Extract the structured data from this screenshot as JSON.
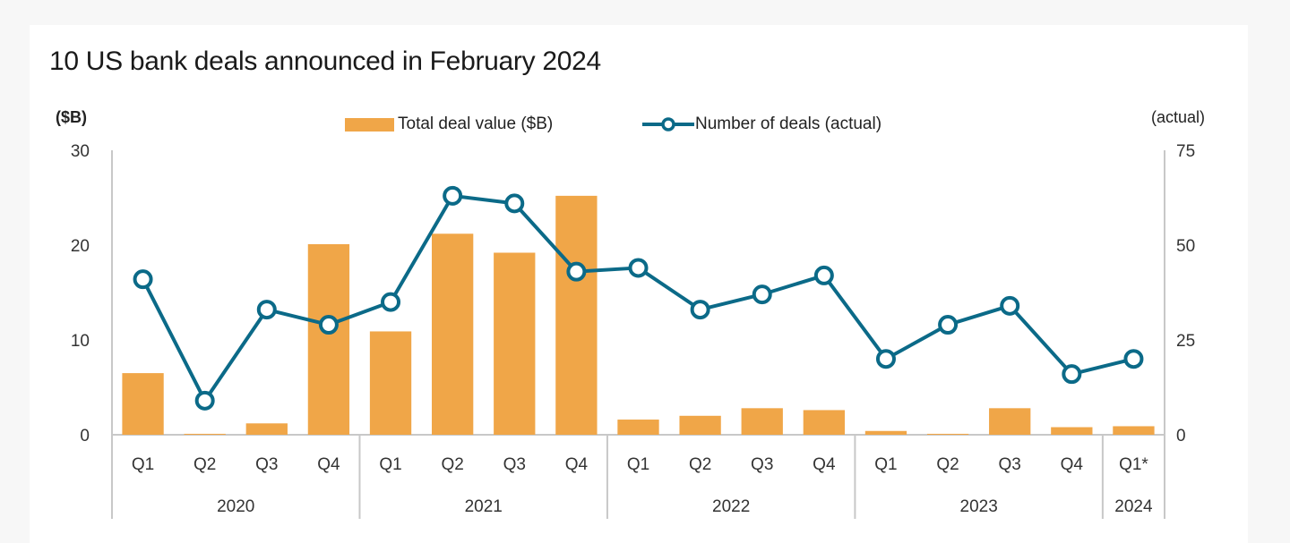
{
  "colors": {
    "bar": "#f0a648",
    "line": "#0b6a88",
    "axis": "#c8c8c8",
    "text": "#222222"
  },
  "chart_data": {
    "type": "bar+line",
    "title": "10 US bank deals announced in February 2024",
    "y_left_label": "($B)",
    "y_right_label": "(actual)",
    "ylim_left": [
      0,
      30
    ],
    "ylim_right": [
      0,
      75
    ],
    "y_left_ticks": [
      "0",
      "10",
      "20",
      "30"
    ],
    "y_right_ticks": [
      "0",
      "25",
      "50",
      "75"
    ],
    "legend": [
      "Total deal value ($B)",
      "Number of deals (actual)"
    ],
    "legend_position": "top-center",
    "categories": [
      "Q1",
      "Q2",
      "Q3",
      "Q4",
      "Q1",
      "Q2",
      "Q3",
      "Q4",
      "Q1",
      "Q2",
      "Q3",
      "Q4",
      "Q1",
      "Q2",
      "Q3",
      "Q4",
      "Q1*"
    ],
    "groups": [
      {
        "label": "2020",
        "count": 4
      },
      {
        "label": "2021",
        "count": 4
      },
      {
        "label": "2022",
        "count": 4
      },
      {
        "label": "2023",
        "count": 4
      },
      {
        "label": "2024",
        "count": 1
      }
    ],
    "series": [
      {
        "name": "Total deal value ($B)",
        "type": "bar",
        "axis": "left",
        "values": [
          6.5,
          0.1,
          1.2,
          20.1,
          10.9,
          21.2,
          19.2,
          25.2,
          1.6,
          2.0,
          2.8,
          2.6,
          0.4,
          0.1,
          2.8,
          0.8,
          0.9
        ]
      },
      {
        "name": "Number of deals (actual)",
        "type": "line",
        "axis": "right",
        "values": [
          41,
          9,
          33,
          29,
          35,
          63,
          61,
          43,
          44,
          33,
          37,
          42,
          20,
          29,
          34,
          16,
          20
        ]
      }
    ]
  }
}
